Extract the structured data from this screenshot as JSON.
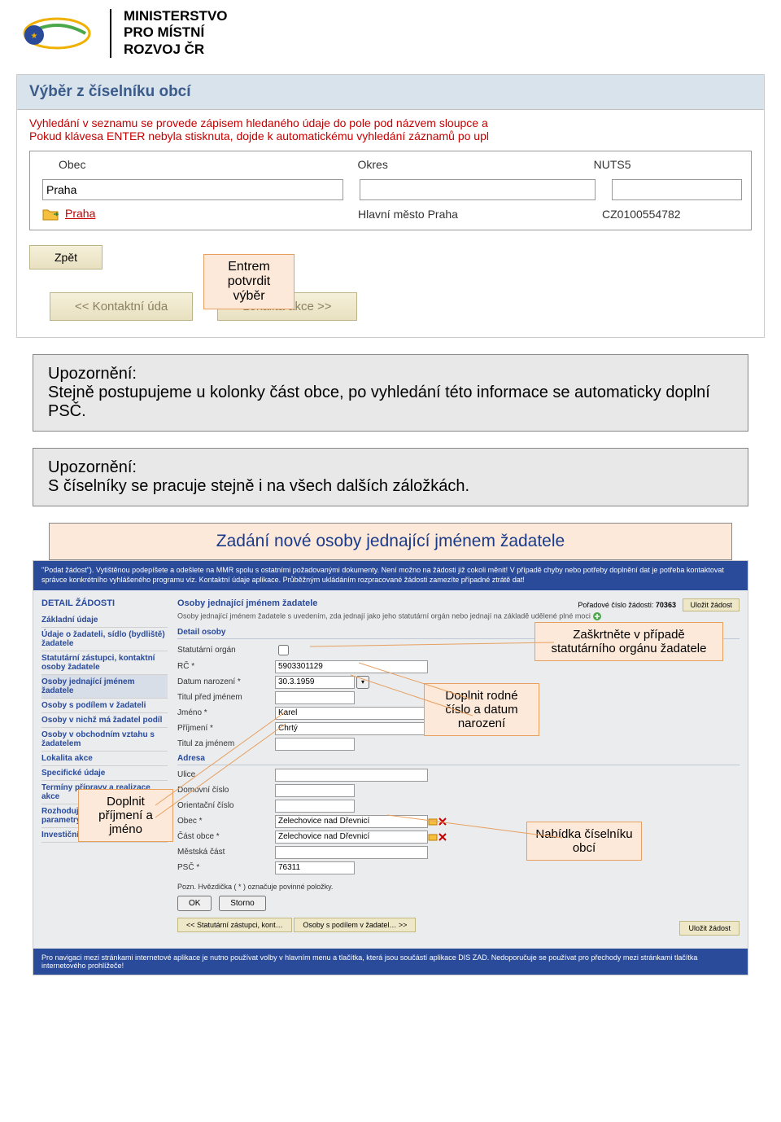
{
  "logo": {
    "line1": "MINISTERSTVO",
    "line2": "PRO MÍSTNÍ",
    "line3": "ROZVOJ ČR"
  },
  "colors": {
    "header_bg": "#d9e3ec",
    "header_text": "#3b5b8a",
    "warning_text": "#c40000",
    "callout_bg": "#fde9d9",
    "callout_border": "#e8a060",
    "info_bg": "#e8e8e8",
    "blue_band": "#2a4a9a",
    "nav_btn_bg": "#efe8c8"
  },
  "panel1": {
    "title": "Výběr z číselníku obcí",
    "note_line1": "Vyhledání v seznamu se provede zápisem hledaného údaje do pole pod názvem sloupce a",
    "note_line2": "Pokud klávesa ENTER nebyla stisknuta, dojde k automatickému vyhledání záznamů po upl",
    "cols": {
      "obec": "Obec",
      "okres": "Okres",
      "nuts": "NUTS5"
    },
    "search_value": "Praha",
    "row": {
      "obec": "Praha",
      "okres": "Hlavní město Praha",
      "nuts": "CZ0100554782"
    },
    "back_btn": "Zpět",
    "callout": "Entrem potvrdit výběr"
  },
  "nav": {
    "prev": "<<  Kontaktní úda",
    "next": "Lokalita akce  >>"
  },
  "info1": {
    "title": "Upozornění:",
    "text": "Stejně postupujeme u kolonky část obce, po vyhledání této informace se automaticky doplní PSČ."
  },
  "info2": {
    "title": "Upozornění:",
    "text": "S číselníky se pracuje stejně i na všech dalších záložkách."
  },
  "section_title": "Zadání nové osoby jednající jménem žadatele",
  "app": {
    "blue_top": "\"Podat žádost\"). Vytištěnou podepíšete a odešlete na MMR spolu s ostatními požadovanými dokumenty. Není možno na žádosti již cokoli měnit! V případě chyby nebo potřeby doplnění dat je potřeba kontaktovat správce konkrétního vyhlášeného programu viz. Kontaktní údaje aplikace. Průběžným ukládáním rozpracované žádosti zamezíte případné ztrátě dat!",
    "detail_title": "DETAIL ŽÁDOSTI",
    "sidebar": [
      "Základní údaje",
      "Údaje o žadateli, sídlo (bydliště) žadatele",
      "Statutární zástupci, kontaktní osoby žadatele",
      "Osoby jednající jménem žadatele",
      "Osoby s podílem v žadateli",
      "Osoby v nichž má žadatel podíl",
      "Osoby v obchodním vztahu s žadatelem",
      "Lokalita akce",
      "Specifické údaje",
      "Termíny přípravy a realizace akce",
      "Rozhodující projektové parametry",
      "Investiční bilance"
    ],
    "sidebar_active_index": 3,
    "main_heading": "Osoby jednající jménem žadatele",
    "order_label": "Pořadové číslo žádosti:",
    "order_value": "70363",
    "save_label": "Uložit žádost",
    "sub_note": "Osoby jednající jménem žadatele s uvedením, zda jednají jako jeho statutární orgán nebo jednají na základě udělené plné moci",
    "detail_section": "Detail osoby",
    "adresa_section": "Adresa",
    "fields": {
      "stat_organ": {
        "label": "Statutární orgán",
        "value": ""
      },
      "rc": {
        "label": "RČ *",
        "value": "5903301129"
      },
      "datum": {
        "label": "Datum narození *",
        "value": "30.3.1959"
      },
      "titul_pred": {
        "label": "Titul před jménem",
        "value": ""
      },
      "jmeno": {
        "label": "Jméno *",
        "value": "Karel"
      },
      "prijmeni": {
        "label": "Příjmení *",
        "value": "Chrtý"
      },
      "titul_za": {
        "label": "Titul za jménem",
        "value": ""
      },
      "ulice": {
        "label": "Ulice",
        "value": ""
      },
      "dom_cislo": {
        "label": "Domovní číslo",
        "value": ""
      },
      "orient_cislo": {
        "label": "Orientační číslo",
        "value": ""
      },
      "obec": {
        "label": "Obec *",
        "value": "Želechovice nad Dřevnicí"
      },
      "cast": {
        "label": "Část obce *",
        "value": "Želechovice nad Dřevnicí"
      },
      "mestska": {
        "label": "Městská část",
        "value": ""
      },
      "psc": {
        "label": "PSČ *",
        "value": "76311"
      }
    },
    "pozn": "Pozn. Hvězdička ( * ) označuje povinné položky.",
    "ok": "OK",
    "storno": "Storno",
    "prev_nav": "<<  Statutární zástupci, kont…",
    "next_nav": "Osoby s podílem v žadatel…  >>",
    "save_bottom": "Uložit žádost",
    "footer": "Pro navigaci mezi stránkami internetové aplikace je nutno používat volby v hlavním menu a tlačítka, která jsou součástí aplikace DIS ZAD. Nedoporučuje se používat pro přechody mezi stránkami tlačítka internetového prohlížeče!"
  },
  "callouts": {
    "stat_organ": "Zaškrtněte v případě statutárního orgánu žadatele",
    "rc_datum": "Doplnit rodné číslo a datum narození",
    "jmeno": "Doplnit příjmení a jméno",
    "obec": "Nabídka číselníku obcí"
  }
}
